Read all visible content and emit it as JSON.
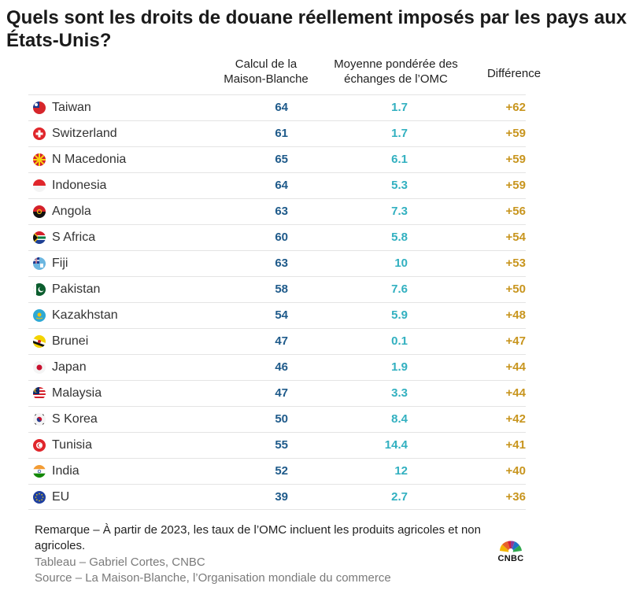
{
  "title": "Quels sont les droits de douane réellement imposés par les pays aux États-Unis?",
  "headers": {
    "col1": [
      "Calcul de la",
      "Maison-Blanche"
    ],
    "col2": [
      "Moyenne pondérée des",
      "échanges de l’OMC"
    ],
    "col3": "Différence"
  },
  "chart_data": {
    "type": "table",
    "columns": [
      "Calcul de la Maison-Blanche",
      "Moyenne pondérée des échanges de l’OMC",
      "Différence"
    ],
    "rows": [
      {
        "country": "Taiwan",
        "flag": "taiwan-flag-icon",
        "wh": "64",
        "wto": "1.7",
        "diff": "+62"
      },
      {
        "country": "Switzerland",
        "flag": "switzerland-flag-icon",
        "wh": "61",
        "wto": "1.7",
        "diff": "+59"
      },
      {
        "country": "N Macedonia",
        "flag": "north-macedonia-flag-icon",
        "wh": "65",
        "wto": "6.1",
        "diff": "+59"
      },
      {
        "country": "Indonesia",
        "flag": "indonesia-flag-icon",
        "wh": "64",
        "wto": "5.3",
        "diff": "+59"
      },
      {
        "country": "Angola",
        "flag": "angola-flag-icon",
        "wh": "63",
        "wto": "7.3",
        "diff": "+56"
      },
      {
        "country": "S Africa",
        "flag": "south-africa-flag-icon",
        "wh": "60",
        "wto": "5.8",
        "diff": "+54"
      },
      {
        "country": "Fiji",
        "flag": "fiji-flag-icon",
        "wh": "63",
        "wto": "10",
        "diff": "+53"
      },
      {
        "country": "Pakistan",
        "flag": "pakistan-flag-icon",
        "wh": "58",
        "wto": "7.6",
        "diff": "+50"
      },
      {
        "country": "Kazakhstan",
        "flag": "kazakhstan-flag-icon",
        "wh": "54",
        "wto": "5.9",
        "diff": "+48"
      },
      {
        "country": "Brunei",
        "flag": "brunei-flag-icon",
        "wh": "47",
        "wto": "0.1",
        "diff": "+47"
      },
      {
        "country": "Japan",
        "flag": "japan-flag-icon",
        "wh": "46",
        "wto": "1.9",
        "diff": "+44"
      },
      {
        "country": "Malaysia",
        "flag": "malaysia-flag-icon",
        "wh": "47",
        "wto": "3.3",
        "diff": "+44"
      },
      {
        "country": "S Korea",
        "flag": "south-korea-flag-icon",
        "wh": "50",
        "wto": "8.4",
        "diff": "+42"
      },
      {
        "country": "Tunisia",
        "flag": "tunisia-flag-icon",
        "wh": "55",
        "wto": "14.4",
        "diff": "+41"
      },
      {
        "country": "India",
        "flag": "india-flag-icon",
        "wh": "52",
        "wto": "12",
        "diff": "+40"
      },
      {
        "country": "EU",
        "flag": "eu-flag-icon",
        "wh": "39",
        "wto": "2.7",
        "diff": "+36"
      }
    ]
  },
  "colors": {
    "white_house": "#1e5a8a",
    "wto": "#32b0c0",
    "difference": "#c8951e"
  },
  "footer": {
    "note": "Remarque – À partir de 2023, les taux de l’OMC incluent les produits agricoles et non agricoles.",
    "credit": "Tableau – Gabriel Cortes, CNBC",
    "source": "Source  – La Maison-Blanche, l’Organisation mondiale du commerce",
    "logo_text": "CNBC"
  }
}
